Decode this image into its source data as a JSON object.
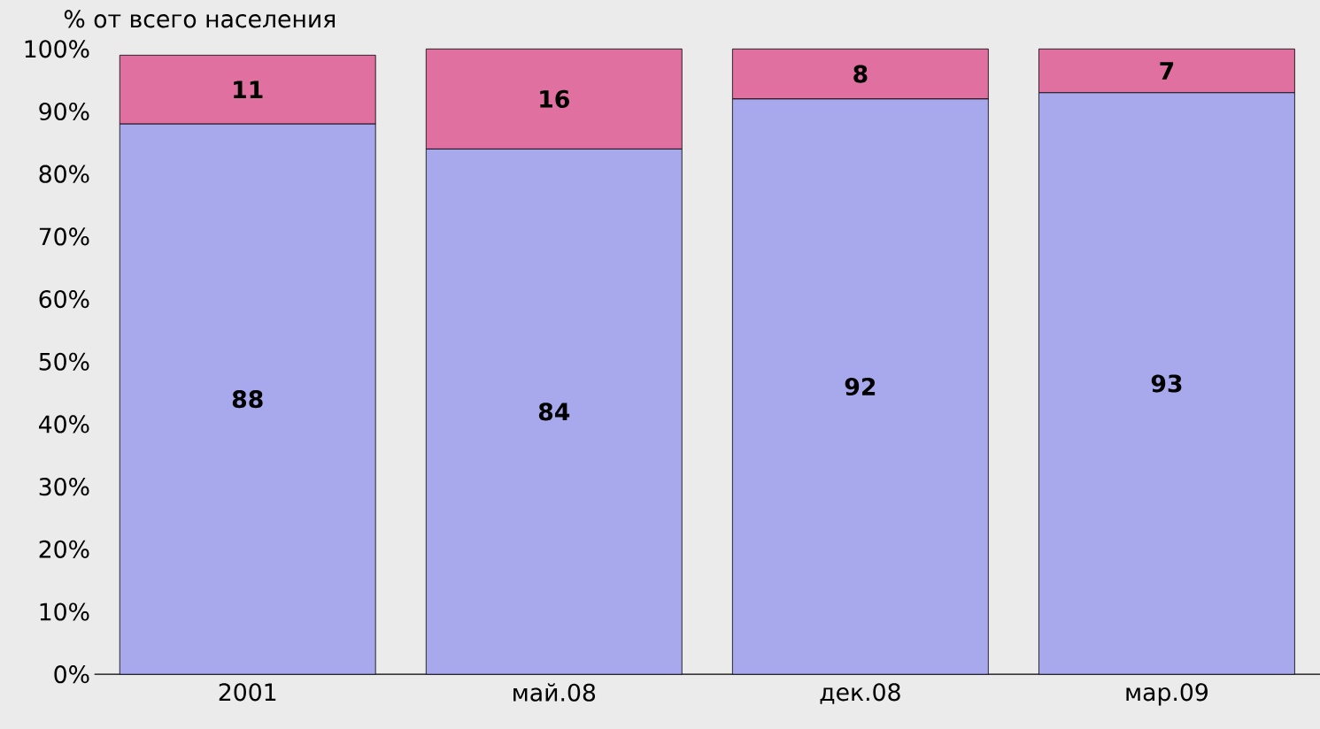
{
  "chart_data": {
    "type": "bar",
    "ylabel": "% от всего населения",
    "categories": [
      "2001",
      "май.08",
      "дек.08",
      "мар.09"
    ],
    "stacked": true,
    "series": [
      {
        "color": "#a8a8ec",
        "values": [
          88,
          84,
          92,
          93
        ]
      },
      {
        "color": "#e0709f",
        "values": [
          11,
          16,
          8,
          7
        ]
      }
    ],
    "ylim": [
      0,
      100
    ],
    "yticks": [
      {
        "value": 0,
        "label": "0%"
      },
      {
        "value": 10,
        "label": "10%"
      },
      {
        "value": 20,
        "label": "20%"
      },
      {
        "value": 30,
        "label": "30%"
      },
      {
        "value": 40,
        "label": "40%"
      },
      {
        "value": 50,
        "label": "50%"
      },
      {
        "value": 60,
        "label": "60%"
      },
      {
        "value": 70,
        "label": "70%"
      },
      {
        "value": 80,
        "label": "80%"
      },
      {
        "value": 90,
        "label": "90%"
      },
      {
        "value": 100,
        "label": "100%"
      }
    ],
    "data_labels": true
  }
}
